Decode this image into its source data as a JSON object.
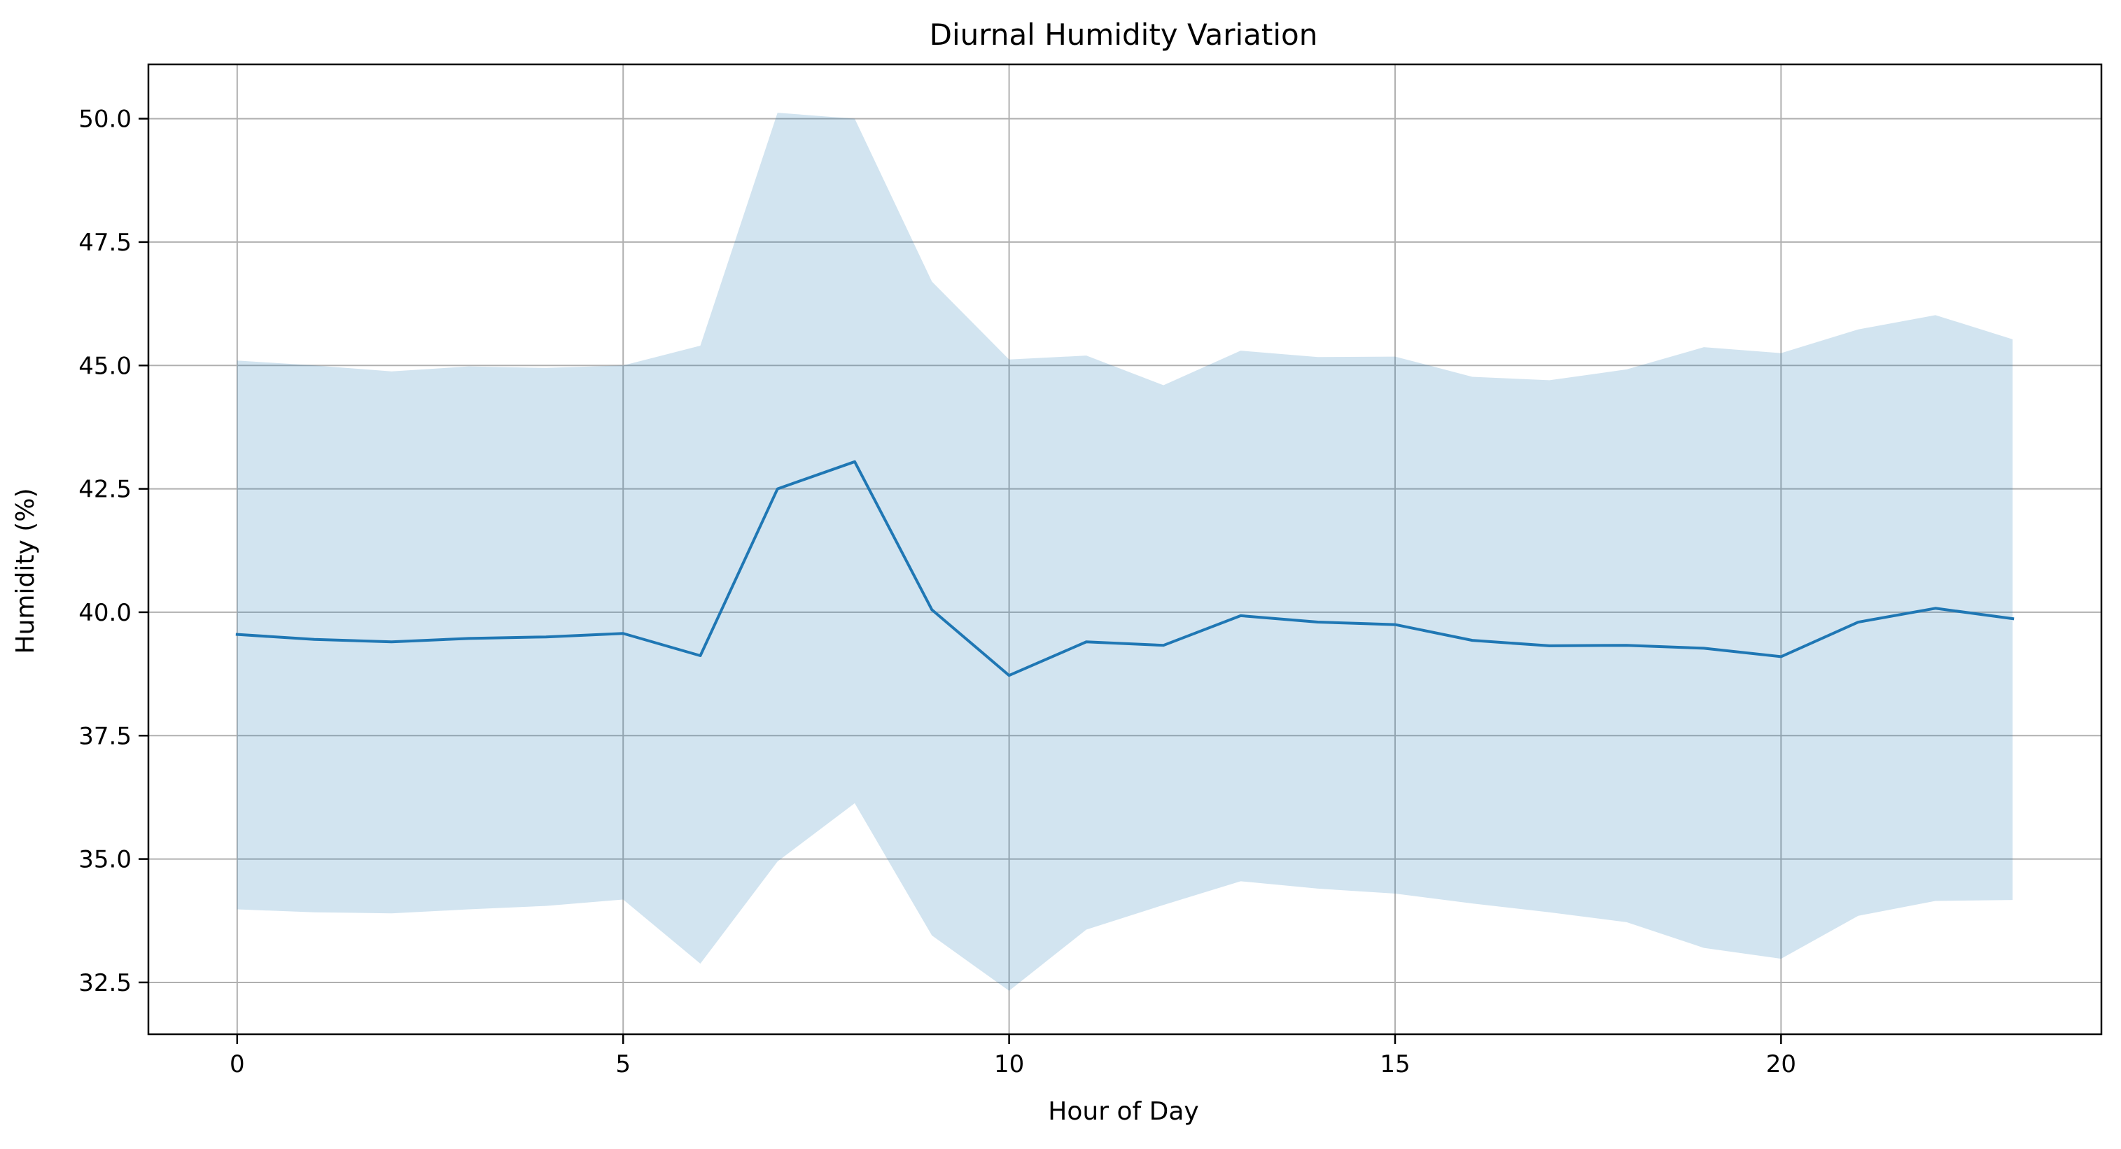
{
  "chart_data": {
    "type": "line",
    "title": "Diurnal Humidity Variation",
    "xlabel": "Hour of Day",
    "ylabel": "Humidity (%)",
    "xlim": [
      -1.15,
      24.15
    ],
    "ylim": [
      31.45,
      51.1
    ],
    "x_ticks": [
      0,
      5,
      10,
      15,
      20
    ],
    "y_ticks": [
      32.5,
      35.0,
      37.5,
      40.0,
      42.5,
      45.0,
      47.5,
      50.0
    ],
    "grid": true,
    "x": [
      0,
      1,
      2,
      3,
      4,
      5,
      6,
      7,
      8,
      9,
      10,
      11,
      12,
      13,
      14,
      15,
      16,
      17,
      18,
      19,
      20,
      21,
      22,
      23
    ],
    "series": [
      {
        "type": "line",
        "values": [
          39.55,
          39.45,
          39.4,
          39.47,
          39.5,
          39.57,
          39.12,
          42.5,
          43.05,
          40.05,
          38.72,
          39.4,
          39.33,
          39.93,
          39.8,
          39.75,
          39.43,
          39.32,
          39.33,
          39.27,
          39.1,
          39.8,
          40.08,
          39.87
        ],
        "color": "#1f77b4"
      },
      {
        "type": "band",
        "upper": [
          45.1,
          45.0,
          44.88,
          44.98,
          44.95,
          45.0,
          45.4,
          50.12,
          50.0,
          46.7,
          45.12,
          45.2,
          44.6,
          45.3,
          45.17,
          45.18,
          44.77,
          44.7,
          44.92,
          45.37,
          45.25,
          45.73,
          46.02,
          45.53
        ],
        "lower": [
          33.98,
          33.92,
          33.9,
          33.98,
          34.05,
          34.18,
          32.88,
          34.95,
          36.13,
          33.45,
          32.33,
          33.57,
          34.07,
          34.55,
          34.4,
          34.3,
          34.1,
          33.92,
          33.72,
          33.2,
          32.98,
          33.85,
          34.15,
          34.17
        ],
        "color": "#1f77b4",
        "opacity": 0.2
      }
    ]
  }
}
